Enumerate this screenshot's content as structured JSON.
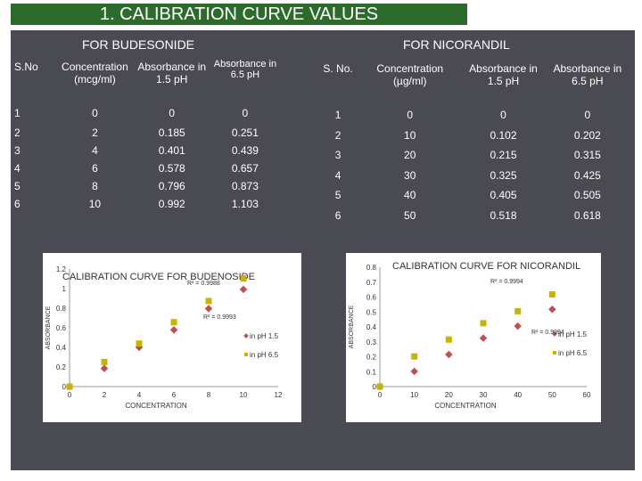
{
  "title": "1. CALIBRATION CURVE VALUES",
  "budesonide": {
    "heading": "FOR BUDESONIDE",
    "headers": [
      "S.No",
      "Concentration (mcg/ml)",
      "Absorbance in 1.5 pH",
      "Absorbance in 6.5 pH"
    ],
    "rows": [
      [
        "1",
        "0",
        "0",
        "0"
      ],
      [
        "2",
        "2",
        "0.185",
        "0.251"
      ],
      [
        "3",
        "4",
        "0.401",
        "0.439"
      ],
      [
        "4",
        "6",
        "0.578",
        "0.657"
      ],
      [
        "5",
        "8",
        "0.796",
        "0.873"
      ],
      [
        "6",
        "10",
        "0.992",
        "1.103"
      ]
    ]
  },
  "nicorandil": {
    "heading": "FOR NICORANDIL",
    "headers": [
      "S. No.",
      "Concentration (µg/ml)",
      "Absorbance in 1.5 pH",
      "Absorbance in 6.5 pH"
    ],
    "rows": [
      [
        "1",
        "0",
        "0",
        "0"
      ],
      [
        "2",
        "10",
        "0.102",
        "0.202"
      ],
      [
        "3",
        "20",
        "0.215",
        "0.315"
      ],
      [
        "4",
        "30",
        "0.325",
        "0.425"
      ],
      [
        "5",
        "40",
        "0.405",
        "0.505"
      ],
      [
        "6",
        "50",
        "0.518",
        "0.618"
      ]
    ]
  },
  "chart_data": [
    {
      "type": "scatter",
      "title": "CALIBRATION CURVE FOR BUDENOSIDE",
      "xlabel": "CONCENTRATION",
      "ylabel": "ABSORBANCE",
      "xlim": [
        0,
        12
      ],
      "ylim": [
        0,
        1.2
      ],
      "xticks": [
        "0",
        "2",
        "4",
        "6",
        "8",
        "10",
        "12"
      ],
      "yticks": [
        "0",
        "0.2",
        "0.4",
        "0.6",
        "0.8",
        "1",
        "1.2"
      ],
      "r2": [
        "R² = 0.9988",
        "R² = 0.9993"
      ],
      "series": [
        {
          "name": "in pH 1.5",
          "color": "#c0504d",
          "x": [
            0,
            2,
            4,
            6,
            8,
            10
          ],
          "y": [
            0,
            0.185,
            0.401,
            0.578,
            0.796,
            0.992
          ]
        },
        {
          "name": "in pH 6.5",
          "color": "#c8b400",
          "x": [
            0,
            2,
            4,
            6,
            8,
            10
          ],
          "y": [
            0,
            0.251,
            0.439,
            0.657,
            0.873,
            1.103
          ]
        }
      ]
    },
    {
      "type": "scatter",
      "title": "CALIBRATION CURVE FOR NICORANDIL",
      "xlabel": "CONCENTRATION",
      "ylabel": "ABSORBANCE",
      "xlim": [
        0,
        60
      ],
      "ylim": [
        0,
        0.8
      ],
      "xticks": [
        "0",
        "10",
        "20",
        "30",
        "40",
        "50",
        "60"
      ],
      "yticks": [
        "0",
        "0.1",
        "0.2",
        "0.3",
        "0.4",
        "0.5",
        "0.6",
        "0.7",
        "0.8"
      ],
      "r2": [
        "R² = 0.9994",
        "R² = 0.9994"
      ],
      "series": [
        {
          "name": "in pH 1.5",
          "color": "#c0504d",
          "x": [
            0,
            10,
            20,
            30,
            40,
            50
          ],
          "y": [
            0,
            0.102,
            0.215,
            0.325,
            0.405,
            0.518
          ]
        },
        {
          "name": "in pH 6.5",
          "color": "#c8b400",
          "x": [
            0,
            10,
            20,
            30,
            40,
            50
          ],
          "y": [
            0,
            0.202,
            0.315,
            0.425,
            0.505,
            0.618
          ]
        }
      ]
    }
  ]
}
